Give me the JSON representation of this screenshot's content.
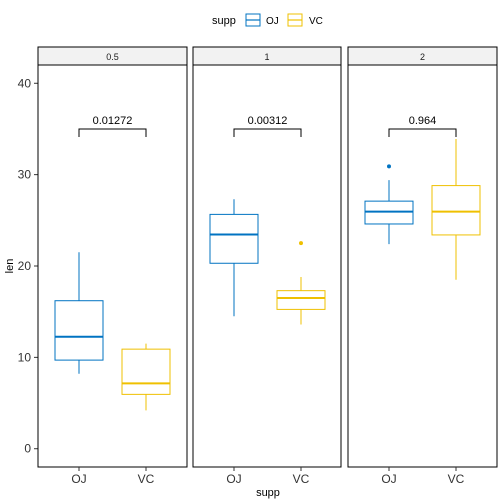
{
  "chart_data": {
    "type": "box",
    "legend": {
      "title": "supp",
      "position": "top",
      "entries": [
        {
          "label": "OJ",
          "color": "#0073C2"
        },
        {
          "label": "VC",
          "color": "#EFC000"
        }
      ]
    },
    "xlabel": "supp",
    "ylabel": "len",
    "ylim": [
      -2,
      42
    ],
    "yticks": [
      0,
      10,
      20,
      30,
      40
    ],
    "categories": [
      "OJ",
      "VC"
    ],
    "panels": [
      {
        "label": "0.5",
        "pvalue": "0.01272",
        "bracket_y": 35,
        "boxes": [
          {
            "group": "OJ",
            "min": 8.2,
            "q1": 9.7,
            "median": 12.25,
            "q3": 16.2,
            "max": 21.5,
            "outliers": []
          },
          {
            "group": "VC",
            "min": 4.2,
            "q1": 5.95,
            "median": 7.15,
            "q3": 10.9,
            "max": 11.5,
            "outliers": []
          }
        ]
      },
      {
        "label": "1",
        "pvalue": "0.00312",
        "bracket_y": 35,
        "boxes": [
          {
            "group": "OJ",
            "min": 14.5,
            "q1": 20.3,
            "median": 23.45,
            "q3": 25.65,
            "max": 27.3,
            "outliers": []
          },
          {
            "group": "VC",
            "min": 13.6,
            "q1": 15.25,
            "median": 16.5,
            "q3": 17.3,
            "max": 18.8,
            "outliers": [
              22.5
            ]
          }
        ]
      },
      {
        "label": "2",
        "pvalue": "0.964",
        "bracket_y": 35,
        "boxes": [
          {
            "group": "OJ",
            "min": 22.4,
            "q1": 24.6,
            "median": 25.95,
            "q3": 27.1,
            "max": 29.4,
            "outliers": [
              30.9
            ]
          },
          {
            "group": "VC",
            "min": 18.5,
            "q1": 23.4,
            "median": 25.95,
            "q3": 28.8,
            "max": 33.9,
            "outliers": []
          }
        ]
      }
    ]
  }
}
